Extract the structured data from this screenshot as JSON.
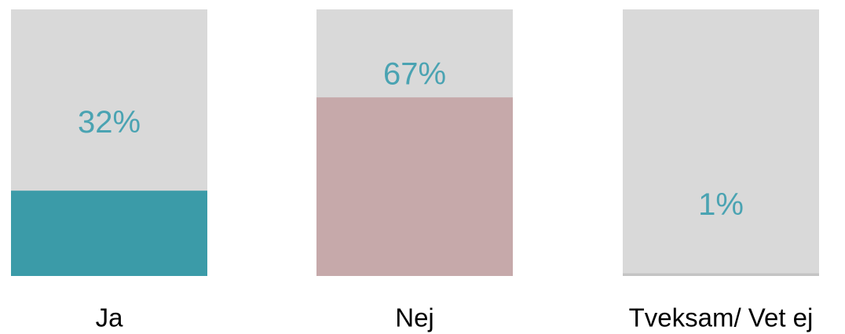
{
  "chart_data": {
    "type": "bar",
    "categories": [
      "Ja",
      "Nej",
      "Tveksam/ Vet ej"
    ],
    "values": [
      32,
      67,
      1
    ],
    "value_labels": [
      "32%",
      "67%",
      "1%"
    ],
    "colors": [
      "#3b9ba8",
      "#c6a9aa",
      "#c4c4c4"
    ],
    "ylim": [
      0,
      100
    ]
  }
}
